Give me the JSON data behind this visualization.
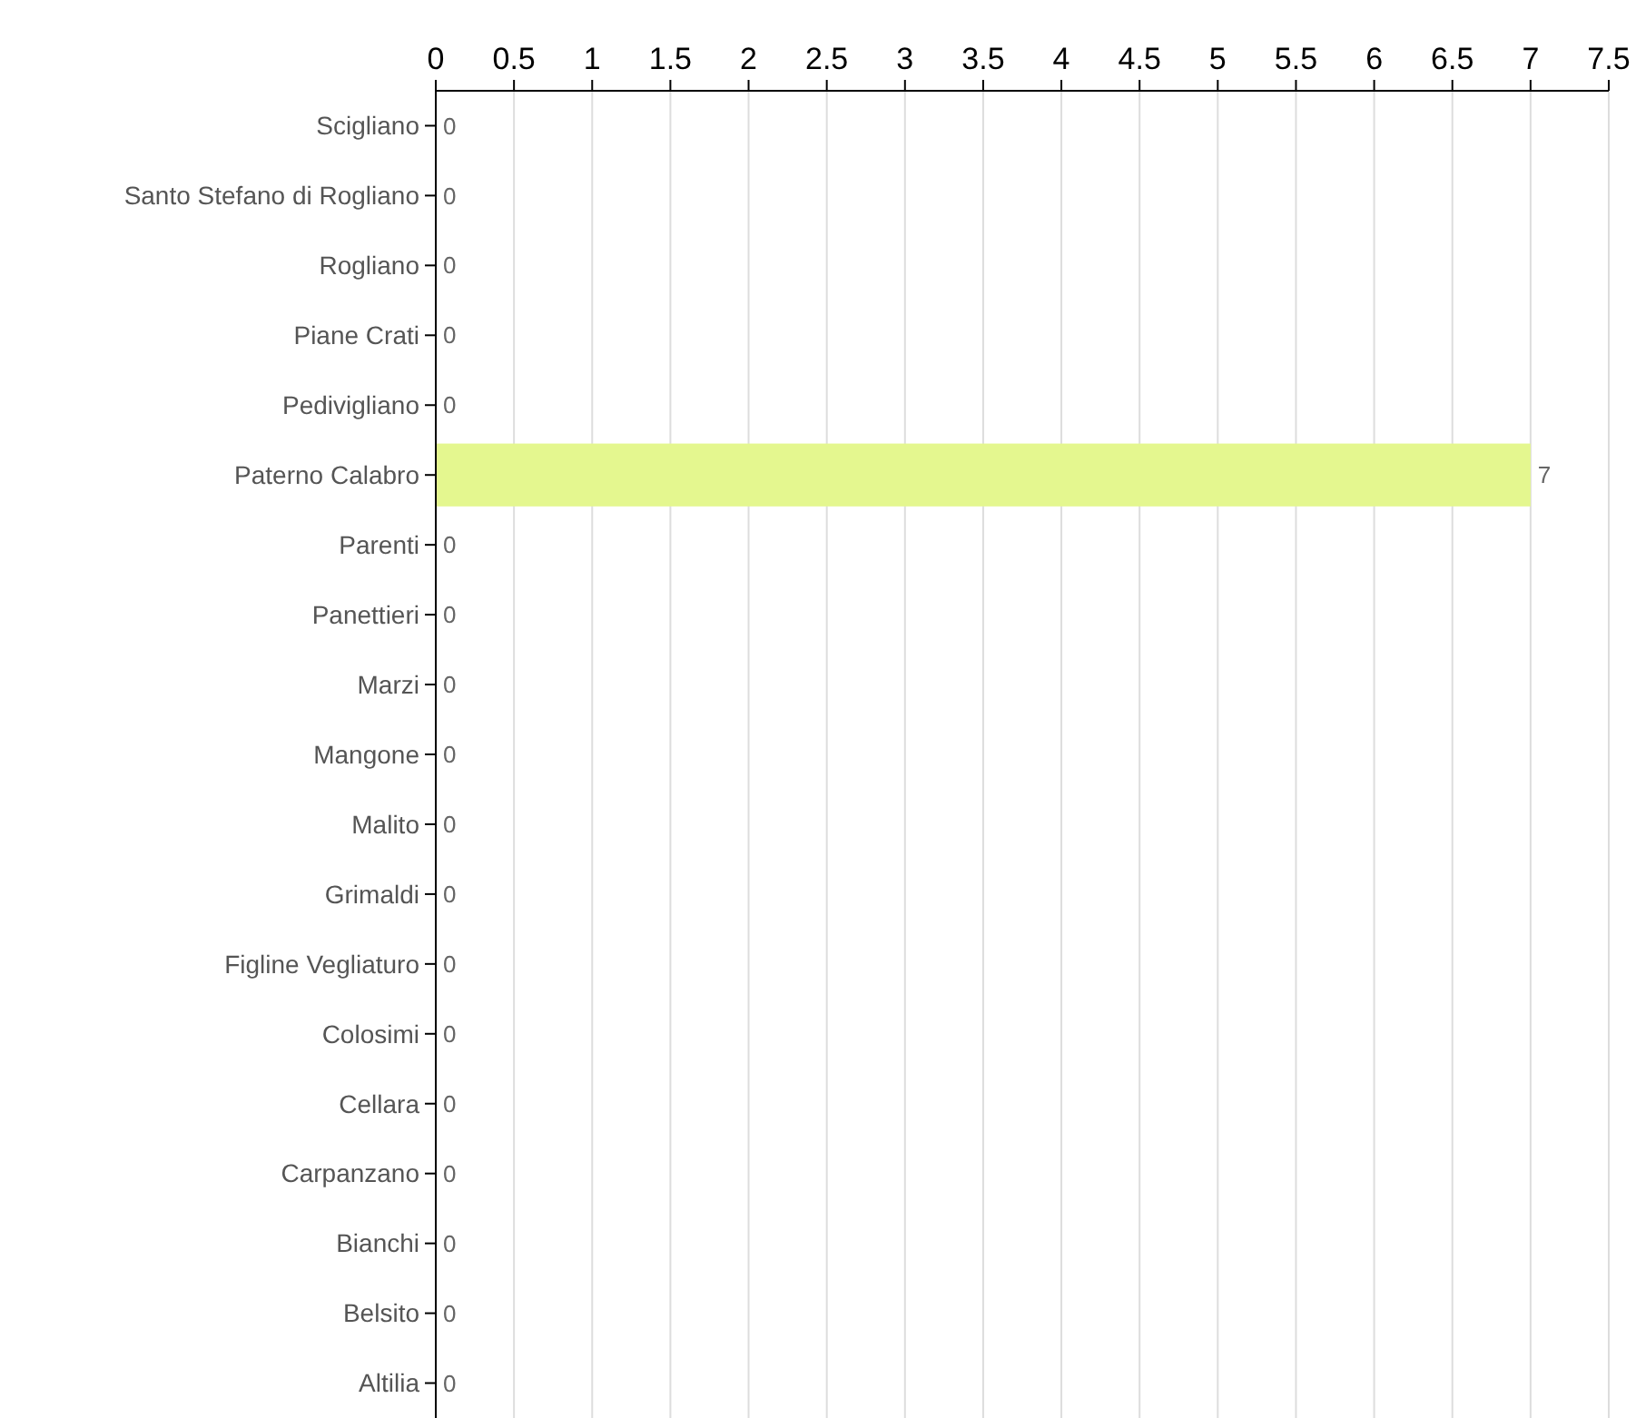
{
  "chart_data": {
    "type": "bar",
    "orientation": "horizontal",
    "categories": [
      "Scigliano",
      "Santo Stefano di Rogliano",
      "Rogliano",
      "Piane Crati",
      "Pedivigliano",
      "Paterno Calabro",
      "Parenti",
      "Panettieri",
      "Marzi",
      "Mangone",
      "Malito",
      "Grimaldi",
      "Figline Vegliaturo",
      "Colosimi",
      "Cellara",
      "Carpanzano",
      "Bianchi",
      "Belsito",
      "Altilia"
    ],
    "values": [
      0,
      0,
      0,
      0,
      0,
      7,
      0,
      0,
      0,
      0,
      0,
      0,
      0,
      0,
      0,
      0,
      0,
      0,
      0
    ],
    "color": "#e4f78f",
    "xlim": [
      0,
      7.5
    ],
    "xticks": [
      0,
      0.5,
      1,
      1.5,
      2,
      2.5,
      3,
      3.5,
      4,
      4.5,
      5,
      5.5,
      6,
      6.5,
      7,
      7.5
    ],
    "grid": "x",
    "data_labels": true
  }
}
